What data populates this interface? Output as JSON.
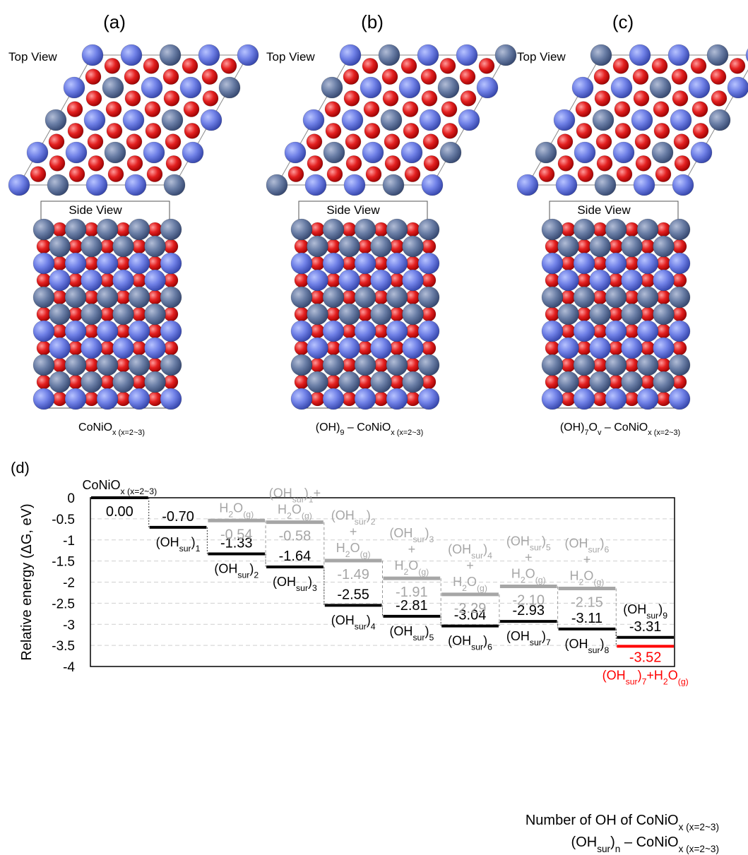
{
  "panels": [
    {
      "label": "(a)",
      "top_view": "Top View",
      "side_view": "Side View",
      "caption": [
        "CoNiO",
        "x (x=2~3)"
      ]
    },
    {
      "label": "(b)",
      "top_view": "Top View",
      "side_view": "Side View",
      "caption": [
        "(OH)",
        "9",
        " – CoNiO",
        "x (x=2~3)"
      ]
    },
    {
      "label": "(c)",
      "top_view": "Top View",
      "side_view": "Side View",
      "caption": [
        "(OH)",
        "7",
        "O",
        "v",
        " – CoNiO",
        "x (x=2~3)"
      ]
    }
  ],
  "chart_data": {
    "type": "level",
    "panel_label": "(d)",
    "y_label": "Relative energy (ΔG, eV)",
    "x_label": [
      [
        "Number of OH of CoNiO",
        "x (x=2~3)"
      ],
      [
        "(OH",
        "sur",
        ")",
        "n",
        " – CoNiO",
        "x (x=2~3)"
      ]
    ],
    "categories": [
      null,
      null,
      null,
      null,
      null,
      null,
      null,
      null,
      null,
      null
    ],
    "ylim": [
      -4,
      0
    ],
    "yticks": [
      0,
      -0.5,
      -1,
      -1.5,
      -2,
      -2.5,
      -3,
      -3.5,
      -4
    ],
    "grid": true,
    "series": [
      {
        "color": "#000000",
        "values": [
          0.0,
          -0.7,
          -1.33,
          -1.64,
          -2.55,
          -2.81,
          -3.04,
          -2.93,
          -3.11,
          -3.31
        ],
        "value_labels": [
          "0.00",
          "-0.70",
          "-1.33",
          "-1.64",
          "-2.55",
          "-2.81",
          "-3.04",
          "-2.93",
          "-3.11",
          "-3.31"
        ],
        "labels": [
          [
            [
              "CoNiO",
              "x (x=2~3)"
            ]
          ],
          [
            [
              "(OH",
              "sur",
              ")",
              "1"
            ]
          ],
          [
            [
              "(OH",
              "sur",
              ")",
              "2"
            ]
          ],
          [
            [
              "(OH",
              "sur",
              ")",
              "3"
            ]
          ],
          [
            [
              "(OH",
              "sur",
              ")",
              "4"
            ]
          ],
          [
            [
              "(OH",
              "sur",
              ")",
              "5"
            ]
          ],
          [
            [
              "(OH",
              "sur",
              ")",
              "6"
            ]
          ],
          [
            [
              "(OH",
              "sur",
              ")",
              "7"
            ]
          ],
          [
            [
              "(OH",
              "sur",
              ")",
              "8"
            ]
          ],
          [
            [
              "(OH",
              "sur",
              ")",
              "9"
            ]
          ]
        ]
      },
      {
        "color": "#a6a6a6",
        "values": [
          null,
          null,
          -0.54,
          -0.58,
          -1.49,
          -1.91,
          -2.29,
          -2.1,
          -2.15,
          null
        ],
        "value_labels": [
          null,
          null,
          "-0.54",
          "-0.58",
          "-1.49",
          "-1.91",
          "-2.29",
          "-2.10",
          "-2.15",
          null
        ],
        "labels": [
          null,
          null,
          [
            [
              "H",
              "2",
              "O",
              "(g)"
            ]
          ],
          [
            [
              "(OH",
              "sur",
              ")",
              "1",
              "+"
            ],
            [
              "H",
              "2",
              "O",
              "(g)"
            ]
          ],
          [
            [
              "(OH",
              "sur",
              ")",
              "2"
            ],
            [
              "+"
            ],
            [
              "H",
              "2",
              "O",
              "(g)"
            ]
          ],
          [
            [
              "(OH",
              "sur",
              ")",
              "3"
            ],
            [
              "+"
            ],
            [
              "H",
              "2",
              "O",
              "(g)"
            ]
          ],
          [
            [
              "(OH",
              "sur",
              ")",
              "4"
            ],
            [
              "+"
            ],
            [
              "H",
              "2",
              "O",
              "(g)"
            ]
          ],
          [
            [
              "(OH",
              "sur",
              ")",
              "5"
            ],
            [
              "+"
            ],
            [
              "H",
              "2",
              "O",
              "(g)"
            ]
          ],
          [
            [
              "(OH",
              "sur",
              ")",
              "6"
            ],
            [
              "+"
            ],
            [
              "H",
              "2",
              "O",
              "(g)"
            ]
          ],
          null
        ]
      },
      {
        "color": "#ff0000",
        "values": [
          null,
          null,
          null,
          null,
          null,
          null,
          null,
          null,
          null,
          -3.52
        ],
        "value_labels": [
          null,
          null,
          null,
          null,
          null,
          null,
          null,
          null,
          null,
          "-3.52"
        ],
        "labels": [
          null,
          null,
          null,
          null,
          null,
          null,
          null,
          null,
          null,
          [
            [
              "(OH",
              "sur",
              ")",
              "7",
              "+H",
              "2",
              "O",
              "(g)"
            ]
          ]
        ]
      }
    ]
  }
}
